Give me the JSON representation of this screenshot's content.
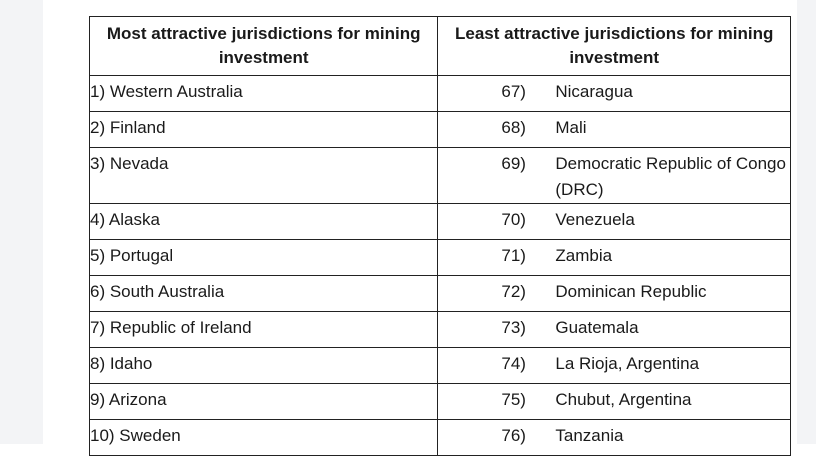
{
  "table": {
    "headers": {
      "most": "Most attractive jurisdictions for mining investment",
      "least": "Least attractive jurisdictions for mining investment"
    },
    "most": [
      "1) Western Australia",
      "2) Finland",
      "3) Nevada",
      "4) Alaska",
      "5) Portugal",
      "6) South Australia",
      "7) Republic of Ireland",
      "8) Idaho",
      "9) Arizona",
      "10) Sweden"
    ],
    "least": [
      {
        "num": "67)",
        "name": "Nicaragua"
      },
      {
        "num": "68)",
        "name": "Mali"
      },
      {
        "num": "69)",
        "name": "Democratic Republic of Congo (DRC)"
      },
      {
        "num": "70)",
        "name": "Venezuela"
      },
      {
        "num": "71)",
        "name": "Zambia"
      },
      {
        "num": "72)",
        "name": "Dominican Republic"
      },
      {
        "num": "73)",
        "name": "Guatemala"
      },
      {
        "num": "74)",
        "name": "La Rioja, Argentina"
      },
      {
        "num": "75)",
        "name": "Chubut, Argentina"
      },
      {
        "num": "76)",
        "name": "Tanzania"
      }
    ]
  }
}
